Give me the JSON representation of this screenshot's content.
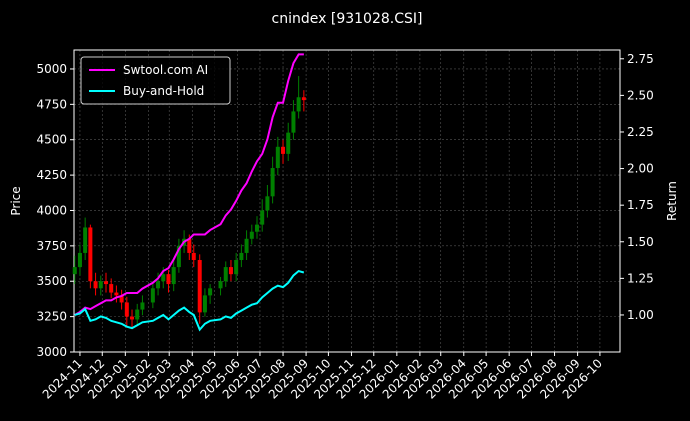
{
  "chart_data": {
    "type": "candlestick",
    "title": "cnindex [931028.CSI]",
    "ylabel": "Price",
    "y2label": "Return",
    "x": [
      "2024-10-25",
      "2024-11-01",
      "2024-11-08",
      "2024-11-15",
      "2024-11-22",
      "2024-11-29",
      "2024-12-06",
      "2024-12-13",
      "2024-12-20",
      "2024-12-27",
      "2025-01-03",
      "2025-01-10",
      "2025-01-17",
      "2025-01-24",
      "2025-02-07",
      "2025-02-14",
      "2025-02-21",
      "2025-02-28",
      "2025-03-07",
      "2025-03-14",
      "2025-03-21",
      "2025-03-28",
      "2025-04-03",
      "2025-04-11",
      "2025-04-18",
      "2025-04-25",
      "2025-05-09",
      "2025-05-16",
      "2025-05-23",
      "2025-05-30",
      "2025-06-06",
      "2025-06-13",
      "2025-06-20",
      "2025-06-27",
      "2025-07-04",
      "2025-07-11",
      "2025-07-18",
      "2025-07-25",
      "2025-08-01",
      "2025-08-08",
      "2025-08-15",
      "2025-08-22",
      "2025-08-29"
    ],
    "open": [
      3550,
      3600,
      3700,
      3880,
      3500,
      3450,
      3500,
      3480,
      3420,
      3400,
      3350,
      3250,
      3230,
      3300,
      3350,
      3450,
      3500,
      3550,
      3480,
      3600,
      3750,
      3800,
      3700,
      3650,
      3280,
      3400,
      3450,
      3500,
      3600,
      3550,
      3650,
      3700,
      3800,
      3850,
      3900,
      4000,
      4100,
      4300,
      4450,
      4400,
      4550,
      4700,
      4800
    ],
    "high": [
      3680,
      3760,
      3950,
      3900,
      3560,
      3540,
      3560,
      3520,
      3470,
      3440,
      3390,
      3300,
      3340,
      3400,
      3500,
      3560,
      3600,
      3580,
      3650,
      3800,
      3860,
      3830,
      3760,
      3690,
      3450,
      3480,
      3530,
      3640,
      3650,
      3700,
      3760,
      3860,
      3900,
      3960,
      4080,
      4180,
      4380,
      4520,
      4500,
      4620,
      4780,
      4950,
      4850
    ],
    "low": [
      3480,
      3540,
      3650,
      3450,
      3400,
      3400,
      3420,
      3380,
      3350,
      3300,
      3180,
      3170,
      3190,
      3260,
      3310,
      3400,
      3450,
      3420,
      3430,
      3560,
      3700,
      3650,
      3600,
      3200,
      3250,
      3340,
      3400,
      3460,
      3500,
      3500,
      3600,
      3650,
      3760,
      3800,
      3850,
      3950,
      4050,
      4250,
      4330,
      4350,
      4500,
      4650,
      4700
    ],
    "close": [
      3600,
      3700,
      3880,
      3500,
      3450,
      3500,
      3480,
      3420,
      3400,
      3350,
      3250,
      3230,
      3300,
      3350,
      3450,
      3500,
      3550,
      3480,
      3600,
      3750,
      3800,
      3700,
      3650,
      3280,
      3400,
      3450,
      3500,
      3600,
      3550,
      3650,
      3700,
      3800,
      3850,
      3900,
      4000,
      4100,
      4300,
      4450,
      4400,
      4550,
      4700,
      4800,
      4780
    ],
    "up_color": "#008000",
    "down_color": "#ff0000",
    "series": [
      {
        "name": "Swtool.com AI",
        "color": "#ff00ff",
        "axis": "y2",
        "values": [
          1.0,
          1.02,
          1.05,
          1.04,
          1.06,
          1.08,
          1.1,
          1.1,
          1.12,
          1.13,
          1.15,
          1.15,
          1.15,
          1.18,
          1.22,
          1.25,
          1.3,
          1.32,
          1.38,
          1.45,
          1.5,
          1.52,
          1.55,
          1.55,
          1.55,
          1.58,
          1.62,
          1.68,
          1.72,
          1.78,
          1.85,
          1.9,
          1.98,
          2.05,
          2.1,
          2.2,
          2.35,
          2.45,
          2.45,
          2.6,
          2.72,
          2.78,
          2.78
        ]
      },
      {
        "name": "Buy-and-Hold",
        "color": "#00ffff",
        "axis": "y2",
        "values": [
          1.0,
          1.01,
          1.04,
          0.96,
          0.97,
          0.99,
          0.98,
          0.96,
          0.95,
          0.94,
          0.92,
          0.91,
          0.93,
          0.95,
          0.96,
          0.98,
          1.0,
          0.97,
          1.0,
          1.03,
          1.05,
          1.02,
          1.0,
          0.9,
          0.94,
          0.96,
          0.97,
          0.99,
          0.98,
          1.01,
          1.03,
          1.05,
          1.07,
          1.08,
          1.12,
          1.15,
          1.18,
          1.2,
          1.19,
          1.22,
          1.27,
          1.3,
          1.29
        ]
      }
    ],
    "xlim": [
      "2024-10-24",
      "2026-10-28"
    ],
    "xticks": [
      {
        "value": "2024-11-01",
        "label": "2024-11"
      },
      {
        "value": "2024-12-01",
        "label": "2024-12"
      },
      {
        "value": "2025-01-01",
        "label": "2025-01"
      },
      {
        "value": "2025-02-01",
        "label": "2025-02"
      },
      {
        "value": "2025-03-01",
        "label": "2025-03"
      },
      {
        "value": "2025-04-01",
        "label": "2025-04"
      },
      {
        "value": "2025-05-01",
        "label": "2025-05"
      },
      {
        "value": "2025-06-01",
        "label": "2025-06"
      },
      {
        "value": "2025-07-01",
        "label": "2025-07"
      },
      {
        "value": "2025-08-01",
        "label": "2025-08"
      },
      {
        "value": "2025-09-01",
        "label": "2025-09"
      },
      {
        "value": "2025-10-01",
        "label": "2025-10"
      },
      {
        "value": "2025-11-01",
        "label": "2025-11"
      },
      {
        "value": "2025-12-01",
        "label": "2025-12"
      },
      {
        "value": "2026-01-01",
        "label": "2026-01"
      },
      {
        "value": "2026-02-01",
        "label": "2026-02"
      },
      {
        "value": "2026-03-01",
        "label": "2026-03"
      },
      {
        "value": "2026-04-01",
        "label": "2026-04"
      },
      {
        "value": "2026-05-01",
        "label": "2026-05"
      },
      {
        "value": "2026-06-01",
        "label": "2026-06"
      },
      {
        "value": "2026-07-01",
        "label": "2026-07"
      },
      {
        "value": "2026-08-01",
        "label": "2026-08"
      },
      {
        "value": "2026-09-01",
        "label": "2026-09"
      },
      {
        "value": "2026-10-01",
        "label": "2026-10"
      }
    ],
    "ylim": [
      3000,
      5134
    ],
    "yticks": [
      3000,
      3250,
      3500,
      3750,
      4000,
      4250,
      4500,
      4750,
      5000
    ],
    "y2lim": [
      0.747,
      2.81
    ],
    "y2ticks": [
      {
        "value": 1,
        "label": "1.00"
      },
      1.25,
      {
        "value": 1.5,
        "label": "1.50"
      },
      1.75,
      {
        "value": 2,
        "label": "2.00"
      },
      2.25,
      {
        "value": 2.5,
        "label": "2.50"
      },
      2.75
    ],
    "grid": true,
    "legend": "upper left"
  }
}
